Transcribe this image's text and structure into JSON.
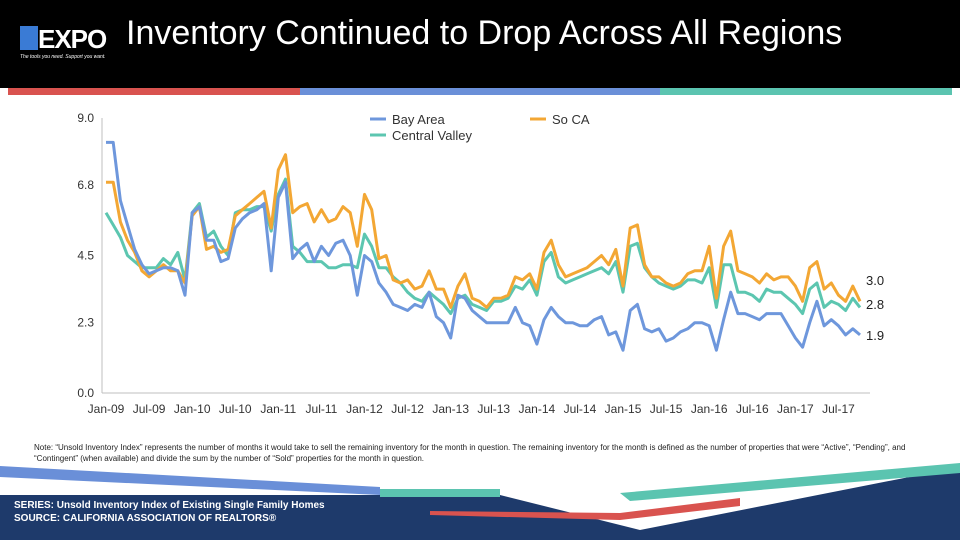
{
  "header": {
    "logo_text": "EXPO",
    "logo_tagline": "The tools you need. Support you want.",
    "title": "Inventory Continued to Drop Across All Regions"
  },
  "colors": {
    "bay_area": "#6e97dc",
    "so_ca": "#f3a734",
    "central_valley": "#5cc6b0",
    "accent_red": "#d9534f",
    "accent_blue": "#6a8fd8",
    "accent_teal": "#5bc4b0",
    "footer_navy": "#1e3a6b"
  },
  "chart_data": {
    "type": "line",
    "x_tick_labels": [
      "Jan-09",
      "Jul-09",
      "Jan-10",
      "Jul-10",
      "Jan-11",
      "Jul-11",
      "Jan-12",
      "Jul-12",
      "Jan-13",
      "Jul-13",
      "Jan-14",
      "Jul-14",
      "Jan-15",
      "Jul-15",
      "Jan-16",
      "Jul-16",
      "Jan-17",
      "Jul-17"
    ],
    "y_tick_labels": [
      "0.0",
      "2.3",
      "4.5",
      "6.8",
      "9.0"
    ],
    "ylim": [
      0,
      9
    ],
    "grid": false,
    "legend_position": "top",
    "series": [
      {
        "name": "Bay Area",
        "color": "#6e97dc",
        "end_label": "1.9",
        "values": [
          8.2,
          8.2,
          6.3,
          5.5,
          4.7,
          4.2,
          3.9,
          4.0,
          4.1,
          4.1,
          4.0,
          3.2,
          5.9,
          6.1,
          5.0,
          5.0,
          4.3,
          4.4,
          5.4,
          5.7,
          5.9,
          6.0,
          6.2,
          4.0,
          6.4,
          6.9,
          4.4,
          4.7,
          4.9,
          4.3,
          4.8,
          4.5,
          4.9,
          5.0,
          4.5,
          3.2,
          4.5,
          4.3,
          3.6,
          3.3,
          2.9,
          2.8,
          2.7,
          2.9,
          2.8,
          3.3,
          2.5,
          2.3,
          1.8,
          3.2,
          3.1,
          2.7,
          2.5,
          2.3,
          2.3,
          2.3,
          2.3,
          2.8,
          2.3,
          2.2,
          1.6,
          2.4,
          2.8,
          2.5,
          2.3,
          2.3,
          2.2,
          2.2,
          2.4,
          2.5,
          1.9,
          2.0,
          1.4,
          2.7,
          2.9,
          2.1,
          2.0,
          2.1,
          1.7,
          1.8,
          2.0,
          2.1,
          2.3,
          2.3,
          2.2,
          1.4,
          2.4,
          3.3,
          2.6,
          2.6,
          2.5,
          2.4,
          2.6,
          2.6,
          2.6,
          2.2,
          1.8,
          1.5,
          2.3,
          3.0,
          2.2,
          2.4,
          2.2,
          1.9,
          2.1,
          1.9
        ]
      },
      {
        "name": "So CA",
        "color": "#f3a734",
        "end_label": "3.0",
        "values": [
          6.9,
          6.9,
          5.6,
          5.0,
          4.6,
          4.0,
          3.8,
          4.0,
          4.2,
          4.0,
          4.0,
          3.6,
          5.8,
          6.1,
          4.7,
          4.8,
          4.6,
          4.7,
          5.8,
          6.0,
          6.2,
          6.4,
          6.6,
          5.4,
          7.3,
          7.8,
          5.9,
          6.1,
          6.2,
          5.6,
          6.0,
          5.6,
          5.7,
          6.1,
          5.9,
          4.8,
          6.5,
          6.0,
          4.4,
          4.5,
          3.7,
          3.6,
          3.7,
          3.4,
          3.5,
          4.0,
          3.4,
          3.4,
          2.8,
          3.5,
          3.9,
          3.1,
          3.0,
          2.8,
          3.1,
          3.1,
          3.2,
          3.8,
          3.7,
          3.9,
          3.4,
          4.6,
          5.0,
          4.2,
          3.8,
          3.9,
          4.0,
          4.1,
          4.3,
          4.5,
          4.2,
          4.7,
          3.5,
          5.4,
          5.5,
          4.2,
          3.8,
          3.8,
          3.6,
          3.5,
          3.6,
          3.9,
          4.0,
          4.0,
          4.8,
          3.1,
          4.8,
          5.3,
          4.0,
          3.9,
          3.8,
          3.6,
          3.9,
          3.7,
          3.8,
          3.8,
          3.5,
          3.0,
          4.1,
          4.3,
          3.4,
          3.6,
          3.2,
          3.0,
          3.5,
          3.0
        ]
      },
      {
        "name": "Central Valley",
        "color": "#5cc6b0",
        "end_label": "2.8",
        "values": [
          5.9,
          5.5,
          5.1,
          4.5,
          4.3,
          4.1,
          4.1,
          4.1,
          4.4,
          4.2,
          4.6,
          3.7,
          5.9,
          6.2,
          5.1,
          5.3,
          4.8,
          4.5,
          5.9,
          6.0,
          6.0,
          6.1,
          6.1,
          5.3,
          6.5,
          7.0,
          4.8,
          4.6,
          4.3,
          4.3,
          4.3,
          4.1,
          4.1,
          4.2,
          4.2,
          4.1,
          5.2,
          4.8,
          4.1,
          4.1,
          3.8,
          3.6,
          3.3,
          3.1,
          3.0,
          3.3,
          3.1,
          2.9,
          2.6,
          3.1,
          3.2,
          2.9,
          2.8,
          2.7,
          3.0,
          3.0,
          3.1,
          3.5,
          3.4,
          3.7,
          3.2,
          4.3,
          4.6,
          3.8,
          3.6,
          3.7,
          3.8,
          3.9,
          4.0,
          4.1,
          3.9,
          4.3,
          3.3,
          4.8,
          4.9,
          4.1,
          3.8,
          3.6,
          3.5,
          3.4,
          3.5,
          3.7,
          3.7,
          3.6,
          4.1,
          2.8,
          4.2,
          4.2,
          3.3,
          3.3,
          3.2,
          3.0,
          3.4,
          3.3,
          3.3,
          3.1,
          2.9,
          2.6,
          3.4,
          3.6,
          2.8,
          3.0,
          2.9,
          2.7,
          3.1,
          2.8
        ]
      }
    ]
  },
  "note": "Note: “Unsold Inventory Index” represents the number of months it would take to sell the remaining inventory for the month in question. The remaining inventory for the month is defined as the number of properties that were “Active”, “Pending”, and “Contingent” (when available) and divide the sum by the number of “Sold” properties for the month in question.",
  "footer": {
    "series_label": "SERIES: Unsold Inventory Index of Existing Single Family Homes",
    "source_label": "SOURCE:  CALIFORNIA ASSOCIATION OF REALTORS®"
  }
}
